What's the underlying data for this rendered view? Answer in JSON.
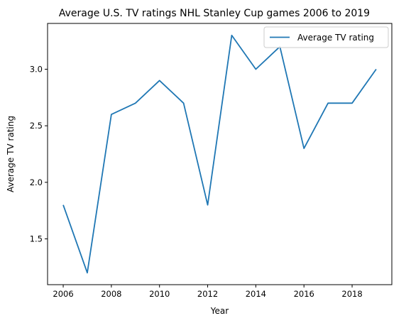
{
  "chart_data": {
    "type": "line",
    "title": "Average U.S. TV ratings NHL Stanley Cup games 2006 to 2019",
    "xlabel": "Year",
    "ylabel": "Average TV rating",
    "x": [
      2006,
      2007,
      2008,
      2009,
      2010,
      2011,
      2012,
      2013,
      2014,
      2015,
      2016,
      2017,
      2018,
      2019
    ],
    "series": [
      {
        "name": "Average TV rating",
        "values": [
          1.8,
          1.2,
          2.6,
          2.7,
          2.9,
          2.7,
          1.8,
          3.3,
          3.0,
          3.2,
          2.3,
          2.7,
          2.7,
          3.0
        ],
        "color": "#1f77b4"
      }
    ],
    "xlim": [
      2005.35,
      2019.65
    ],
    "ylim": [
      1.095,
      3.405
    ],
    "xticks": [
      2006,
      2008,
      2010,
      2012,
      2014,
      2016,
      2018
    ],
    "xtick_labels": [
      "2006",
      "2008",
      "2010",
      "2012",
      "2014",
      "2016",
      "2018"
    ],
    "yticks": [
      1.5,
      2.0,
      2.5,
      3.0
    ],
    "ytick_labels": [
      "1.5",
      "2.0",
      "2.5",
      "3.0"
    ],
    "grid": false,
    "legend_position": "top-right"
  }
}
